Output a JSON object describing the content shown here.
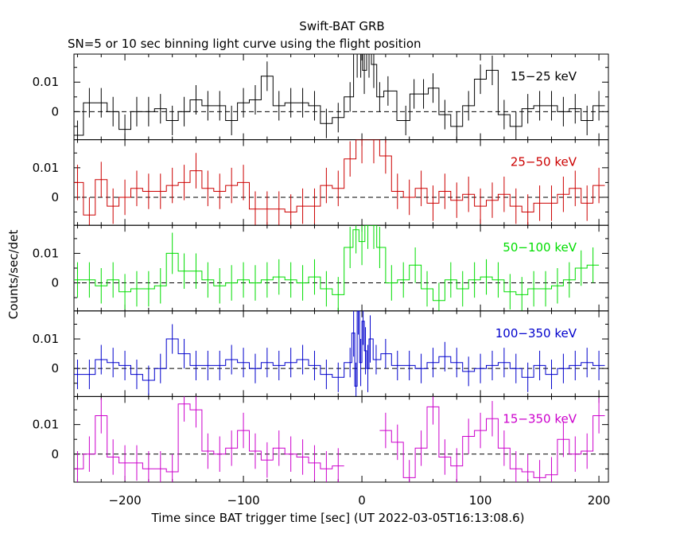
{
  "chart_data": {
    "type": "line",
    "title": "Swift-BAT GRB",
    "subtitle": "SN=5 or 10 sec binning light curve using the flight position",
    "xlabel": "Time since BAT trigger time [sec] (UT 2022-03-05T16:13:08.6)",
    "ylabel": "Counts/sec/det",
    "xlim": [
      -243,
      208
    ],
    "x_ticks": [
      -200,
      -100,
      0,
      100,
      200
    ],
    "x_tick_labels": [
      "−200",
      "−100",
      "0",
      "100",
      "200"
    ],
    "ylim": [
      -0.0095,
      0.0195
    ],
    "y_ticks": [
      0,
      0.01
    ],
    "y_tick_labels": [
      "0",
      "0.01"
    ],
    "panels": [
      {
        "name": "15−25 keV",
        "color": "#000000",
        "points": [
          [
            -240,
            -0.008,
            0.005
          ],
          [
            -230,
            0.003,
            0.005
          ],
          [
            -220,
            0.003,
            0.005
          ],
          [
            -210,
            0.0,
            0.005
          ],
          [
            -200,
            -0.006,
            0.005
          ],
          [
            -190,
            0.0,
            0.005
          ],
          [
            -180,
            0.0,
            0.005
          ],
          [
            -170,
            0.001,
            0.005
          ],
          [
            -160,
            -0.003,
            0.005
          ],
          [
            -150,
            0.0,
            0.005
          ],
          [
            -140,
            0.004,
            0.005
          ],
          [
            -130,
            0.002,
            0.005
          ],
          [
            -120,
            0.002,
            0.005
          ],
          [
            -110,
            -0.003,
            0.005
          ],
          [
            -100,
            0.003,
            0.005
          ],
          [
            -90,
            0.004,
            0.005
          ],
          [
            -80,
            0.012,
            0.005
          ],
          [
            -70,
            0.002,
            0.005
          ],
          [
            -60,
            0.003,
            0.005
          ],
          [
            -50,
            0.003,
            0.005
          ],
          [
            -40,
            0.002,
            0.005
          ],
          [
            -30,
            -0.004,
            0.005
          ],
          [
            -20,
            -0.002,
            0.005
          ],
          [
            -10,
            0.005,
            0.005
          ],
          [
            -4,
            0.0195,
            0.008
          ],
          [
            -1,
            0.0195,
            0.008
          ],
          [
            2,
            0.014,
            0.008
          ],
          [
            6,
            0.0195,
            0.008
          ],
          [
            10,
            0.016,
            0.008
          ],
          [
            15,
            0.005,
            0.005
          ],
          [
            22,
            0.007,
            0.005
          ],
          [
            37,
            -0.003,
            0.005
          ],
          [
            44,
            0.006,
            0.005
          ],
          [
            52,
            0.006,
            0.005
          ],
          [
            60,
            0.008,
            0.005
          ],
          [
            70,
            -0.001,
            0.005
          ],
          [
            80,
            -0.005,
            0.005
          ],
          [
            90,
            0.002,
            0.005
          ],
          [
            100,
            0.011,
            0.005
          ],
          [
            110,
            0.014,
            0.005
          ],
          [
            120,
            -0.001,
            0.005
          ],
          [
            130,
            -0.005,
            0.005
          ],
          [
            140,
            0.001,
            0.005
          ],
          [
            150,
            0.002,
            0.005
          ],
          [
            160,
            0.002,
            0.005
          ],
          [
            170,
            0.0,
            0.005
          ],
          [
            180,
            0.001,
            0.005
          ],
          [
            190,
            -0.003,
            0.005
          ],
          [
            200,
            0.002,
            0.005
          ]
        ]
      },
      {
        "name": "25−50 keV",
        "color": "#cc0000",
        "points": [
          [
            -240,
            0.005,
            0.006
          ],
          [
            -230,
            -0.006,
            0.006
          ],
          [
            -220,
            0.006,
            0.006
          ],
          [
            -210,
            -0.003,
            0.006
          ],
          [
            -200,
            0.0,
            0.006
          ],
          [
            -190,
            0.003,
            0.006
          ],
          [
            -180,
            0.002,
            0.006
          ],
          [
            -170,
            0.002,
            0.006
          ],
          [
            -160,
            0.004,
            0.006
          ],
          [
            -150,
            0.005,
            0.006
          ],
          [
            -140,
            0.009,
            0.006
          ],
          [
            -130,
            0.003,
            0.006
          ],
          [
            -120,
            0.002,
            0.006
          ],
          [
            -110,
            0.004,
            0.006
          ],
          [
            -100,
            0.005,
            0.006
          ],
          [
            -90,
            -0.004,
            0.006
          ],
          [
            -80,
            -0.004,
            0.006
          ],
          [
            -70,
            -0.004,
            0.006
          ],
          [
            -60,
            -0.005,
            0.006
          ],
          [
            -50,
            -0.003,
            0.006
          ],
          [
            -40,
            -0.003,
            0.006
          ],
          [
            -30,
            0.004,
            0.006
          ],
          [
            -20,
            0.003,
            0.006
          ],
          [
            -10,
            0.013,
            0.006
          ],
          [
            0,
            0.0195,
            0.008
          ],
          [
            10,
            0.0195,
            0.008
          ],
          [
            20,
            0.014,
            0.006
          ],
          [
            30,
            0.002,
            0.006
          ],
          [
            40,
            0.0,
            0.006
          ],
          [
            50,
            0.003,
            0.006
          ],
          [
            60,
            -0.002,
            0.006
          ],
          [
            70,
            0.002,
            0.006
          ],
          [
            80,
            -0.001,
            0.006
          ],
          [
            90,
            0.001,
            0.006
          ],
          [
            100,
            -0.003,
            0.006
          ],
          [
            110,
            -0.001,
            0.006
          ],
          [
            120,
            0.001,
            0.006
          ],
          [
            130,
            -0.003,
            0.006
          ],
          [
            140,
            -0.005,
            0.006
          ],
          [
            150,
            -0.002,
            0.006
          ],
          [
            160,
            -0.002,
            0.006
          ],
          [
            170,
            0.001,
            0.006
          ],
          [
            180,
            0.003,
            0.006
          ],
          [
            190,
            -0.002,
            0.006
          ],
          [
            200,
            0.004,
            0.006
          ]
        ]
      },
      {
        "name": "50−100 keV",
        "color": "#00dd00",
        "points": [
          [
            -240,
            0.001,
            0.006
          ],
          [
            -230,
            0.001,
            0.006
          ],
          [
            -220,
            -0.001,
            0.006
          ],
          [
            -210,
            0.001,
            0.006
          ],
          [
            -200,
            -0.003,
            0.006
          ],
          [
            -190,
            -0.002,
            0.006
          ],
          [
            -180,
            -0.002,
            0.006
          ],
          [
            -170,
            -0.001,
            0.006
          ],
          [
            -160,
            0.01,
            0.007
          ],
          [
            -150,
            0.004,
            0.006
          ],
          [
            -140,
            0.004,
            0.006
          ],
          [
            -130,
            0.001,
            0.006
          ],
          [
            -120,
            -0.001,
            0.006
          ],
          [
            -110,
            0.0,
            0.006
          ],
          [
            -100,
            0.001,
            0.006
          ],
          [
            -90,
            0.0,
            0.006
          ],
          [
            -80,
            0.001,
            0.006
          ],
          [
            -70,
            0.002,
            0.006
          ],
          [
            -60,
            0.001,
            0.006
          ],
          [
            -50,
            0.0,
            0.006
          ],
          [
            -40,
            0.002,
            0.006
          ],
          [
            -30,
            -0.002,
            0.006
          ],
          [
            -20,
            -0.004,
            0.006
          ],
          [
            -10,
            0.012,
            0.007
          ],
          [
            -5,
            0.018,
            0.008
          ],
          [
            0,
            0.014,
            0.008
          ],
          [
            5,
            0.0195,
            0.008
          ],
          [
            10,
            0.0195,
            0.008
          ],
          [
            15,
            0.012,
            0.007
          ],
          [
            25,
            0.0,
            0.006
          ],
          [
            35,
            0.001,
            0.006
          ],
          [
            45,
            0.006,
            0.006
          ],
          [
            55,
            -0.002,
            0.006
          ],
          [
            65,
            -0.006,
            0.006
          ],
          [
            75,
            0.001,
            0.006
          ],
          [
            85,
            -0.002,
            0.006
          ],
          [
            95,
            0.001,
            0.006
          ],
          [
            105,
            0.002,
            0.006
          ],
          [
            115,
            0.001,
            0.006
          ],
          [
            125,
            -0.003,
            0.006
          ],
          [
            135,
            -0.004,
            0.006
          ],
          [
            145,
            -0.002,
            0.006
          ],
          [
            155,
            -0.002,
            0.006
          ],
          [
            165,
            -0.001,
            0.006
          ],
          [
            175,
            0.001,
            0.006
          ],
          [
            185,
            0.005,
            0.006
          ],
          [
            195,
            0.006,
            0.006
          ]
        ]
      },
      {
        "name": "100−350 keV",
        "color": "#0000cc",
        "points": [
          [
            -240,
            -0.002,
            0.005
          ],
          [
            -230,
            -0.002,
            0.005
          ],
          [
            -220,
            0.003,
            0.005
          ],
          [
            -210,
            0.002,
            0.005
          ],
          [
            -200,
            0.001,
            0.005
          ],
          [
            -190,
            -0.002,
            0.005
          ],
          [
            -180,
            -0.004,
            0.005
          ],
          [
            -170,
            0.0,
            0.005
          ],
          [
            -160,
            0.01,
            0.005
          ],
          [
            -150,
            0.005,
            0.005
          ],
          [
            -140,
            0.001,
            0.005
          ],
          [
            -130,
            0.001,
            0.005
          ],
          [
            -120,
            0.001,
            0.005
          ],
          [
            -110,
            0.003,
            0.005
          ],
          [
            -100,
            0.002,
            0.005
          ],
          [
            -90,
            0.0,
            0.005
          ],
          [
            -80,
            0.002,
            0.005
          ],
          [
            -70,
            0.001,
            0.005
          ],
          [
            -60,
            0.002,
            0.005
          ],
          [
            -50,
            0.003,
            0.005
          ],
          [
            -40,
            0.001,
            0.005
          ],
          [
            -30,
            -0.002,
            0.005
          ],
          [
            -20,
            -0.003,
            0.005
          ],
          [
            -10,
            0.002,
            0.005
          ],
          [
            -7,
            0.012,
            0.008
          ],
          [
            -5,
            -0.006,
            0.008
          ],
          [
            -3,
            0.0195,
            0.008
          ],
          [
            -1,
            0.002,
            0.008
          ],
          [
            1,
            0.016,
            0.008
          ],
          [
            3,
            0.006,
            0.008
          ],
          [
            5,
            0.0,
            0.008
          ],
          [
            7,
            0.01,
            0.008
          ],
          [
            12,
            0.003,
            0.005
          ],
          [
            20,
            0.005,
            0.005
          ],
          [
            30,
            0.001,
            0.005
          ],
          [
            40,
            0.001,
            0.005
          ],
          [
            50,
            0.0,
            0.005
          ],
          [
            60,
            0.002,
            0.005
          ],
          [
            70,
            0.004,
            0.005
          ],
          [
            80,
            0.002,
            0.005
          ],
          [
            90,
            -0.001,
            0.005
          ],
          [
            100,
            0.0,
            0.005
          ],
          [
            110,
            0.001,
            0.005
          ],
          [
            120,
            0.002,
            0.005
          ],
          [
            130,
            0.0,
            0.005
          ],
          [
            140,
            -0.003,
            0.005
          ],
          [
            150,
            0.001,
            0.005
          ],
          [
            160,
            -0.002,
            0.005
          ],
          [
            170,
            0.0,
            0.005
          ],
          [
            180,
            0.001,
            0.005
          ],
          [
            190,
            0.002,
            0.005
          ],
          [
            200,
            0.001,
            0.005
          ]
        ]
      },
      {
        "name": "15−350 keV",
        "color": "#cc00cc",
        "points": [
          [
            -240,
            -0.005,
            0.006
          ],
          [
            -230,
            0.0,
            0.006
          ],
          [
            -220,
            0.013,
            0.006
          ],
          [
            -210,
            -0.001,
            0.006
          ],
          [
            -200,
            -0.003,
            0.006
          ],
          [
            -190,
            -0.003,
            0.006
          ],
          [
            -180,
            -0.005,
            0.006
          ],
          [
            -170,
            -0.005,
            0.006
          ],
          [
            -160,
            -0.006,
            0.006
          ],
          [
            -150,
            0.017,
            0.006
          ],
          [
            -140,
            0.015,
            0.006
          ],
          [
            -130,
            0.001,
            0.006
          ],
          [
            -120,
            0.0,
            0.006
          ],
          [
            -110,
            0.002,
            0.006
          ],
          [
            -100,
            0.008,
            0.006
          ],
          [
            -90,
            0.001,
            0.006
          ],
          [
            -80,
            -0.002,
            0.006
          ],
          [
            -70,
            0.002,
            0.006
          ],
          [
            -60,
            0.0,
            0.006
          ],
          [
            -50,
            -0.001,
            0.006
          ],
          [
            -40,
            -0.003,
            0.006
          ],
          [
            -30,
            -0.005,
            0.006
          ],
          [
            -20,
            -0.004,
            0.006
          ],
          [
            20,
            0.008,
            0.006
          ],
          [
            30,
            0.004,
            0.006
          ],
          [
            40,
            -0.008,
            0.006
          ],
          [
            50,
            0.002,
            0.006
          ],
          [
            60,
            0.016,
            0.006
          ],
          [
            70,
            -0.001,
            0.006
          ],
          [
            80,
            -0.004,
            0.006
          ],
          [
            90,
            0.006,
            0.006
          ],
          [
            100,
            0.008,
            0.006
          ],
          [
            110,
            0.012,
            0.006
          ],
          [
            120,
            0.002,
            0.006
          ],
          [
            130,
            -0.005,
            0.006
          ],
          [
            140,
            -0.006,
            0.006
          ],
          [
            150,
            -0.008,
            0.006
          ],
          [
            160,
            -0.007,
            0.006
          ],
          [
            170,
            0.005,
            0.006
          ],
          [
            180,
            0.0,
            0.006
          ],
          [
            190,
            0.001,
            0.006
          ],
          [
            200,
            0.013,
            0.006
          ]
        ]
      }
    ]
  }
}
